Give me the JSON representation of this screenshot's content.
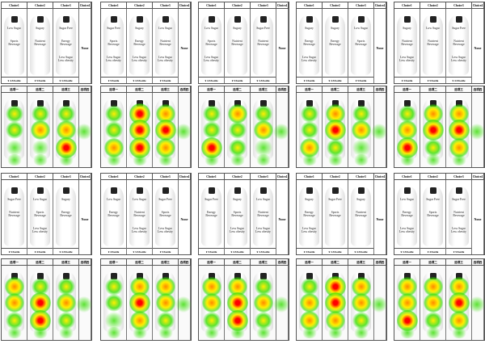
{
  "headers": [
    "Choice1",
    "Choice2",
    "Choice3",
    "Choice4"
  ],
  "none_label": "None",
  "heat_headers": [
    "选项一",
    "选项二",
    "选项三",
    "选项四"
  ],
  "colors": {
    "hot": "#ff0000",
    "warm": "#ffee00",
    "cool": "#33dd00"
  },
  "cards": [
    {
      "row": 0,
      "col": 0,
      "bottles": [
        [
          "Low Sugar",
          "Sports Beverage",
          ""
        ],
        [
          "Sugary",
          "Nutrient Beverage",
          ""
        ],
        [
          "Sugar Free",
          "Energy Beverage",
          "Less Sugar Less obesity"
        ]
      ],
      "prices": [
        "¥ 4.5/bottle",
        "¥ 5/bottle",
        "¥ 3.5/bottle"
      ],
      "heat": [
        [
          0.5,
          0.6,
          0.3
        ],
        [
          0.6,
          0.7,
          0.3
        ],
        [
          0.6,
          0.7,
          0.95
        ]
      ],
      "heat_none": 0.4
    },
    {
      "row": 0,
      "col": 1,
      "bold": true,
      "bottles": [
        [
          "Sugar Free",
          "Sports Beverage",
          "Less Sugar Less obesity"
        ],
        [
          "Sugary",
          "Energy Beverage",
          "Less Sugar Less obesity"
        ],
        [
          "Low Sugar",
          "Nutrient Beverage",
          "Less Sugar Less obesity"
        ]
      ],
      "prices": [
        "¥ 5/bottle",
        "¥ 4.5/bottle",
        "¥ 5/bottle"
      ],
      "heat": [
        [
          0.5,
          0.6,
          0.7
        ],
        [
          0.95,
          0.9,
          0.9
        ],
        [
          0.7,
          0.9,
          0.7
        ]
      ],
      "heat_none": 0.3
    },
    {
      "row": 0,
      "col": 2,
      "bottles": [
        [
          "Low Sugar",
          "Sports Beverage",
          "Less Sugar Less obesity"
        ],
        [
          "Sugary",
          "Nutrient Beverage",
          ""
        ],
        [
          "Sugar Free",
          "Nutrient Beverage",
          ""
        ]
      ],
      "prices": [
        "¥ 4.5/bottle",
        "¥ 5/bottle",
        "¥ 3.5/bottle"
      ],
      "heat": [
        [
          0.5,
          0.6,
          0.9
        ],
        [
          0.7,
          0.6,
          0.5
        ],
        [
          0.6,
          0.7,
          0.4
        ]
      ],
      "heat_none": 0.3
    },
    {
      "row": 0,
      "col": 3,
      "bottles": [
        [
          "Sugary",
          "Energy Beverage",
          "Less Sugar Less obesity"
        ],
        [
          "Sugary",
          "Energy Beverage",
          ""
        ],
        [
          "Low Sugar",
          "Sports Beverage",
          ""
        ]
      ],
      "prices": [
        "¥ 3/bottle",
        "¥ 4.5/bottle",
        "¥ 5/bottle"
      ],
      "heat": [
        [
          0.5,
          0.6,
          0.8
        ],
        [
          0.7,
          0.9,
          0.6
        ],
        [
          0.6,
          0.8,
          0.4
        ]
      ],
      "heat_none": 0.3
    },
    {
      "row": 0,
      "col": 4,
      "bottles": [
        [
          "Sugary",
          "Nutrient Beverage",
          "Less Sugar Less obesity"
        ],
        [
          "Low Sugar",
          "Nutrient Beverage",
          ""
        ],
        [
          "Sugar Free",
          "Nutrient Beverage",
          "Less Sugar Less obesity"
        ]
      ],
      "prices": [
        "¥ 3/bottle",
        "¥ 5/bottle",
        "¥ 4.5/bottle"
      ],
      "heat": [
        [
          0.6,
          0.7,
          0.9
        ],
        [
          0.8,
          0.9,
          0.6
        ],
        [
          0.7,
          0.9,
          0.7
        ]
      ],
      "heat_none": 0.3
    },
    {
      "row": 1,
      "col": 0,
      "bottles": [
        [
          "Sugar Free",
          "Nutrient Beverage",
          ""
        ],
        [
          "Low Sugar",
          "Sports Beverage",
          "Less Sugar Less obesity"
        ],
        [
          "Sugary",
          "Energy Beverage",
          ""
        ]
      ],
      "prices": [
        "¥ 5/bottle",
        "¥ 4/bottle",
        "¥ 4.5/bottle"
      ],
      "heat": [
        [
          0.7,
          0.8,
          0.5
        ],
        [
          0.6,
          0.9,
          0.9
        ],
        [
          0.6,
          0.7,
          0.5
        ]
      ],
      "heat_none": 0.4
    },
    {
      "row": 1,
      "col": 1,
      "bottles": [
        [
          "Low Sugar",
          "Energy Beverage",
          ""
        ],
        [
          "Low Sugar",
          "Nutrient Beverage",
          "Less Sugar Less obesity"
        ],
        [
          "Sugar Free",
          "Sports Beverage",
          "Less Sugar Less obesity"
        ]
      ],
      "prices": [
        "¥ 4/bottle",
        "¥ 3.5/bottle",
        "¥ 5/bottle"
      ],
      "heat": [
        [
          0.6,
          0.6,
          0.4
        ],
        [
          0.8,
          0.9,
          0.8
        ],
        [
          0.7,
          0.8,
          0.6
        ]
      ],
      "heat_none": 0.3
    },
    {
      "row": 1,
      "col": 2,
      "bottles": [
        [
          "Sugar Free",
          "Energy Beverage",
          ""
        ],
        [
          "Sugary",
          "Sports Beverage",
          "Less Sugar Less obesity"
        ],
        [
          "Low Sugar",
          "Nutrient Beverage",
          "Less Sugar Less obesity"
        ]
      ],
      "prices": [
        "¥ 5/bottle",
        "¥ 4.5/bottle",
        "¥ 3.5/bottle"
      ],
      "heat": [
        [
          0.7,
          0.7,
          0.5
        ],
        [
          0.8,
          0.9,
          0.9
        ],
        [
          0.6,
          0.7,
          0.6
        ]
      ],
      "heat_none": 0.3
    },
    {
      "row": 1,
      "col": 3,
      "bottles": [
        [
          "Sugary",
          "Energy Beverage",
          "Less Sugar Less obesity"
        ],
        [
          "Sugar Free",
          "Sports Beverage",
          ""
        ],
        [
          "Sugary",
          "Nutrient Beverage",
          ""
        ]
      ],
      "prices": [
        "¥ 3/bottle",
        "¥ 3.5/bottle",
        "¥ 4.5/bottle"
      ],
      "heat": [
        [
          0.6,
          0.7,
          0.8
        ],
        [
          0.9,
          0.9,
          0.7
        ],
        [
          0.7,
          0.8,
          0.5
        ]
      ],
      "heat_none": 0.3
    },
    {
      "row": 1,
      "col": 4,
      "bottles": [
        [
          "Low Sugar",
          "Energy Beverage",
          "Less Sugar Less obesity"
        ],
        [
          "Sugar Free",
          "Sports Beverage",
          ""
        ],
        [
          "Sugar Free",
          "Nutrient Beverage",
          "Less Sugar Less obesity"
        ]
      ],
      "prices": [
        "¥ 3.5/bottle",
        "¥ 4/bottle",
        "¥ 5/bottle"
      ],
      "heat": [
        [
          0.8,
          0.8,
          0.9
        ],
        [
          0.7,
          0.8,
          0.6
        ],
        [
          0.8,
          0.9,
          0.8
        ]
      ],
      "heat_none": 0.3
    }
  ]
}
